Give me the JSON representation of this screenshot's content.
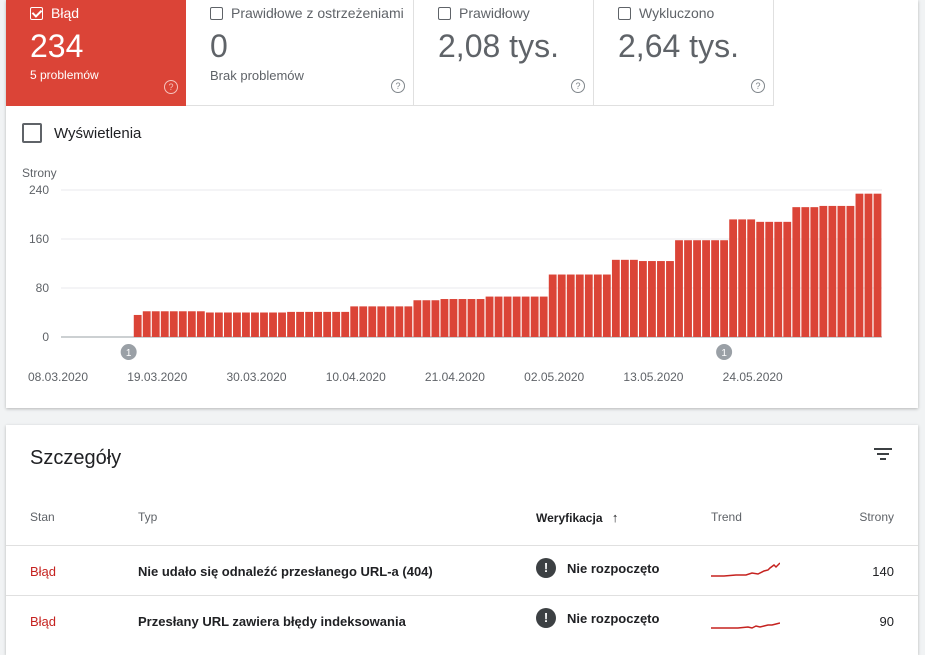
{
  "tiles": [
    {
      "label": "Błąd",
      "value": "234",
      "sub": "5 problemów",
      "checked": true,
      "help": "?"
    },
    {
      "label": "Prawidłowe z ostrzeżeniami",
      "value": "0",
      "sub": "Brak problemów",
      "checked": false,
      "help": "?"
    },
    {
      "label": "Prawidłowy",
      "value": "2,08 tys.",
      "sub": "",
      "checked": false,
      "help": "?"
    },
    {
      "label": "Wykluczono",
      "value": "2,64 tys.",
      "sub": "",
      "checked": false,
      "help": "?"
    }
  ],
  "views_label": "Wyświetlenia",
  "chart_data": {
    "type": "bar",
    "ylabel": "Strony",
    "ylim": [
      0,
      240
    ],
    "yticks": [
      "0",
      "80",
      "160",
      "240"
    ],
    "xtick_labels": [
      "08.03.2020",
      "19.03.2020",
      "30.03.2020",
      "10.04.2020",
      "21.04.2020",
      "02.05.2020",
      "13.05.2020",
      "24.05.2020"
    ],
    "annotations": [
      {
        "label": "1",
        "day_index": 7
      },
      {
        "label": "1",
        "day_index": 73
      }
    ],
    "bar_color": "#db4437",
    "values": [
      0,
      0,
      0,
      0,
      0,
      0,
      0,
      0,
      36,
      42,
      42,
      42,
      42,
      42,
      42,
      42,
      40,
      40,
      40,
      40,
      40,
      40,
      40,
      40,
      40,
      41,
      41,
      41,
      41,
      41,
      41,
      41,
      50,
      50,
      50,
      50,
      50,
      50,
      50,
      60,
      60,
      60,
      62,
      62,
      62,
      62,
      62,
      66,
      66,
      66,
      66,
      66,
      66,
      66,
      102,
      102,
      102,
      102,
      102,
      102,
      102,
      126,
      126,
      126,
      124,
      124,
      124,
      124,
      158,
      158,
      158,
      158,
      158,
      158,
      192,
      192,
      192,
      188,
      188,
      188,
      188,
      212,
      212,
      212,
      214,
      214,
      214,
      214,
      234,
      234,
      234
    ]
  },
  "details": {
    "title": "Szczegóły",
    "columns": {
      "status": "Stan",
      "type": "Typ",
      "verification": "Weryfikacja",
      "trend": "Trend",
      "pages": "Strony"
    },
    "rows": [
      {
        "status": "Błąd",
        "type": "Nie udało się odnaleźć przesłanego URL-a (404)",
        "verification": "Nie rozpoczęto",
        "pages": "140"
      },
      {
        "status": "Błąd",
        "type": "Przesłany URL zawiera błędy indeksowania",
        "verification": "Nie rozpoczęto",
        "pages": "90"
      }
    ]
  }
}
